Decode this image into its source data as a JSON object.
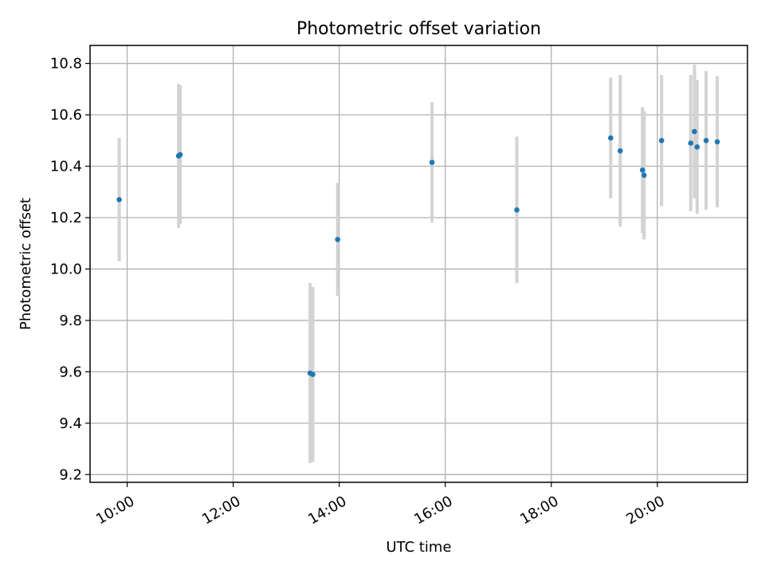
{
  "chart_data": {
    "type": "scatter",
    "title": "Photometric offset variation",
    "xlabel": "UTC time",
    "ylabel": "Photometric offset",
    "x_unit": "hours",
    "xlim": [
      9.3,
      21.7
    ],
    "ylim": [
      9.17,
      10.87
    ],
    "x_ticks": [
      {
        "value": 10,
        "label": "10:00"
      },
      {
        "value": 12,
        "label": "12:00"
      },
      {
        "value": 14,
        "label": "14:00"
      },
      {
        "value": 16,
        "label": "16:00"
      },
      {
        "value": 18,
        "label": "18:00"
      },
      {
        "value": 20,
        "label": "20:00"
      }
    ],
    "y_ticks": [
      {
        "value": 9.2,
        "label": "9.2"
      },
      {
        "value": 9.4,
        "label": "9.4"
      },
      {
        "value": 9.6,
        "label": "9.6"
      },
      {
        "value": 9.8,
        "label": "9.8"
      },
      {
        "value": 10.0,
        "label": "10.0"
      },
      {
        "value": 10.2,
        "label": "10.2"
      },
      {
        "value": 10.4,
        "label": "10.4"
      },
      {
        "value": 10.6,
        "label": "10.6"
      },
      {
        "value": 10.8,
        "label": "10.8"
      }
    ],
    "grid": true,
    "points": [
      {
        "x": 9.85,
        "y": 10.27,
        "err": 0.24
      },
      {
        "x": 10.97,
        "y": 10.44,
        "err": 0.28
      },
      {
        "x": 11.0,
        "y": 10.445,
        "err": 0.27
      },
      {
        "x": 13.45,
        "y": 9.595,
        "err": 0.35
      },
      {
        "x": 13.5,
        "y": 9.59,
        "err": 0.34
      },
      {
        "x": 13.97,
        "y": 10.115,
        "err": 0.22
      },
      {
        "x": 15.75,
        "y": 10.415,
        "err": 0.235
      },
      {
        "x": 17.35,
        "y": 10.23,
        "err": 0.285
      },
      {
        "x": 19.12,
        "y": 10.51,
        "err": 0.235
      },
      {
        "x": 19.3,
        "y": 10.46,
        "err": 0.295
      },
      {
        "x": 19.72,
        "y": 10.385,
        "err": 0.245
      },
      {
        "x": 19.75,
        "y": 10.365,
        "err": 0.25
      },
      {
        "x": 20.08,
        "y": 10.5,
        "err": 0.255
      },
      {
        "x": 20.63,
        "y": 10.49,
        "err": 0.265
      },
      {
        "x": 20.7,
        "y": 10.535,
        "err": 0.26
      },
      {
        "x": 20.75,
        "y": 10.475,
        "err": 0.26
      },
      {
        "x": 20.92,
        "y": 10.5,
        "err": 0.27
      },
      {
        "x": 21.13,
        "y": 10.495,
        "err": 0.255
      }
    ]
  }
}
